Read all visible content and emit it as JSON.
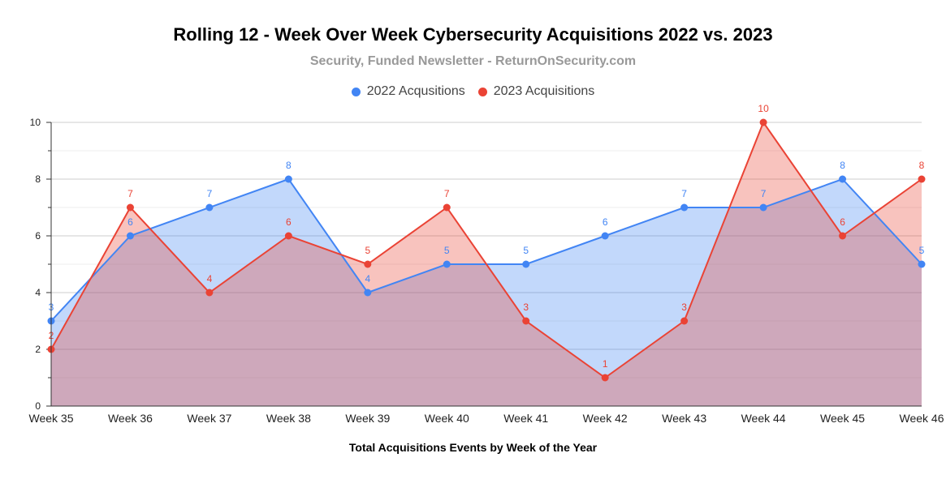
{
  "chart_data": {
    "type": "area",
    "title": "Rolling 12 - Week Over Week Cybersecurity Acquisitions 2022 vs. 2023",
    "subtitle": "Security, Funded Newsletter - ReturnOnSecurity.com",
    "xlabel": "Total Acquisitions Events by Week of the Year",
    "ylabel": "",
    "categories": [
      "Week 35",
      "Week 36",
      "Week 37",
      "Week 38",
      "Week 39",
      "Week 40",
      "Week 41",
      "Week 42",
      "Week 43",
      "Week 44",
      "Week 45",
      "Week 46"
    ],
    "ylim": [
      0,
      10
    ],
    "yticks": [
      0,
      2,
      4,
      6,
      8,
      10
    ],
    "grid": true,
    "legend_position": "top",
    "series": [
      {
        "name": "2022 Acqusitions",
        "color": "#4285f4",
        "values": [
          3,
          6,
          7,
          8,
          4,
          5,
          5,
          6,
          7,
          7,
          8,
          5
        ]
      },
      {
        "name": "2023 Acquisitions",
        "color": "#ea4335",
        "values": [
          2,
          7,
          4,
          6,
          5,
          7,
          3,
          1,
          3,
          10,
          6,
          8
        ]
      }
    ]
  }
}
